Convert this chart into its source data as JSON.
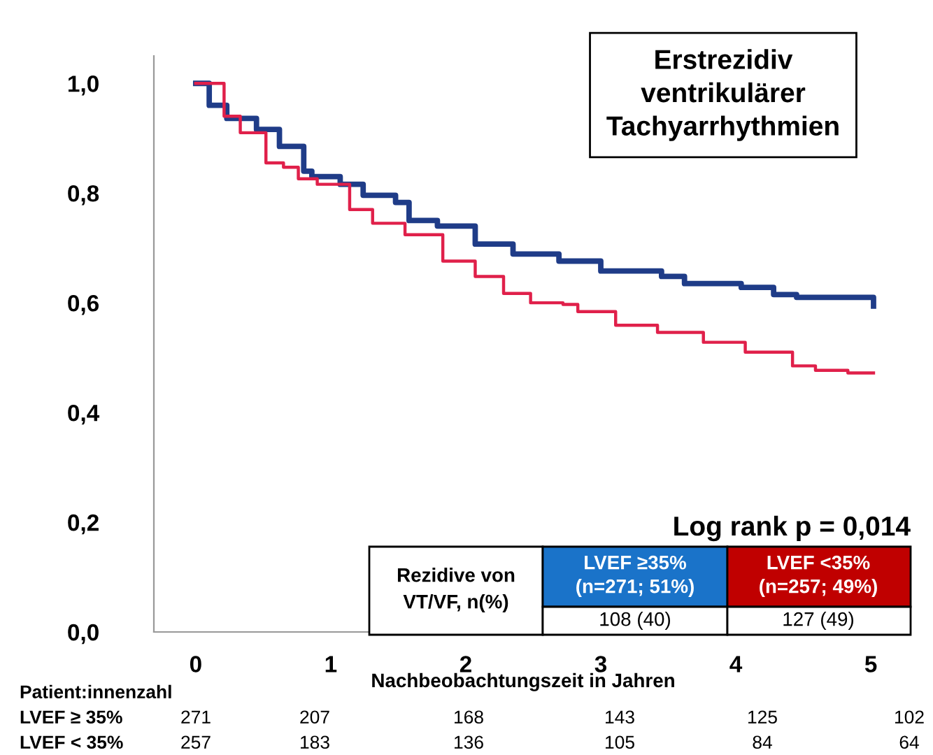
{
  "chart_data": {
    "type": "step",
    "title": "Erstrezidiv\nventrikulärer\nTachyarrhythmien",
    "xlabel": "Nachbeobachtungszeit in Jahren",
    "series": [
      {
        "color": "#1f3c88",
        "x": [
          0,
          0.1,
          0.23,
          0.45,
          0.62,
          0.8,
          0.86,
          1.07,
          1.24,
          1.48,
          1.58,
          1.79,
          2.07,
          2.35,
          2.69,
          3.0,
          3.45,
          3.62,
          4.04,
          4.28,
          4.45,
          4.87,
          5.02
        ],
        "values": [
          1.0,
          0.96,
          0.936,
          0.916,
          0.885,
          0.84,
          0.83,
          0.816,
          0.796,
          0.783,
          0.75,
          0.74,
          0.707,
          0.689,
          0.676,
          0.658,
          0.648,
          0.635,
          0.628,
          0.615,
          0.61,
          0.61,
          0.594
        ]
      },
      {
        "color": "#e0204a",
        "x": [
          0,
          0.21,
          0.33,
          0.52,
          0.65,
          0.76,
          0.9,
          1.14,
          1.31,
          1.55,
          1.83,
          2.07,
          2.28,
          2.48,
          2.72,
          2.83,
          3.11,
          3.42,
          3.76,
          4.07,
          4.42,
          4.59,
          4.83,
          5.02
        ],
        "values": [
          1.0,
          0.94,
          0.91,
          0.855,
          0.847,
          0.826,
          0.816,
          0.77,
          0.745,
          0.724,
          0.676,
          0.648,
          0.617,
          0.6,
          0.597,
          0.584,
          0.559,
          0.546,
          0.528,
          0.51,
          0.485,
          0.477,
          0.472,
          0.472
        ]
      }
    ],
    "xlim": [
      -0.31,
      5.16
    ],
    "ylim": [
      0,
      1.05
    ],
    "xticks": [
      0,
      1,
      2,
      3,
      4,
      5
    ],
    "yticks": [
      {
        "value": 0,
        "label": "0,0"
      },
      {
        "value": 0.2,
        "label": "0,2"
      },
      {
        "value": 0.4,
        "label": "0,4"
      },
      {
        "value": 0.6,
        "label": "0,6"
      },
      {
        "value": 0.8,
        "label": "0,8"
      },
      {
        "value": 1.0,
        "label": "1,0"
      }
    ],
    "grid": false,
    "legend": false,
    "line_style": "solid",
    "marker": "none",
    "annotations": [
      "Log rank p = 0,014",
      "Rezidive von\nVT/VF, n(%)",
      "LVEF ≥35%\n(n=271; 51%)",
      "LVEF <35%\n(n=257; 49%)",
      "108 (40)",
      "127 (49)",
      "Patient:innenzahl",
      "LVEF ≥ 35%",
      "271",
      "207",
      "168",
      "143",
      "125",
      "102",
      "LVEF < 35%",
      "257",
      "183",
      "136",
      "105",
      "84",
      "64"
    ]
  }
}
